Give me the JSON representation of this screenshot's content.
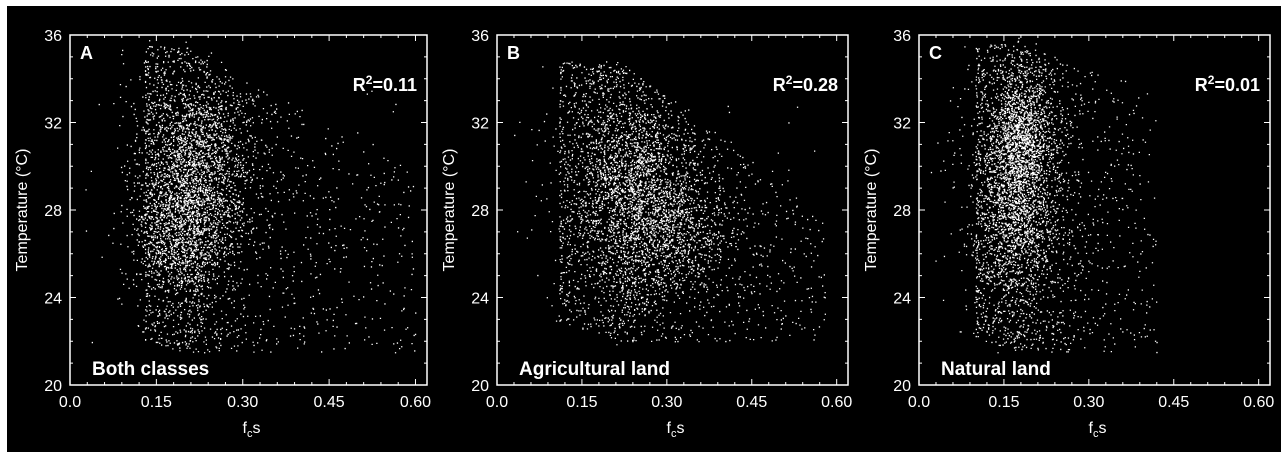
{
  "figure": {
    "background": "#000000",
    "foreground": "#ffffff"
  },
  "chart_data": [
    {
      "type": "scatter",
      "panel_letter": "A",
      "annotation": "Both classes",
      "r2_prefix": "R",
      "r2_sup": "2",
      "r2_value": "=0.11",
      "xlabel_main": "f",
      "xlabel_sub": "c",
      "xlabel_tail": "s",
      "ylabel": "Temperature (°C)",
      "xlim": [
        0.0,
        0.62
      ],
      "ylim": [
        20,
        36
      ],
      "xticks": [
        "0.0",
        "0.15",
        "0.30",
        "0.45",
        "0.60"
      ],
      "xtick_values": [
        0.0,
        0.15,
        0.3,
        0.45,
        0.6
      ],
      "yticks": [
        "20",
        "24",
        "28",
        "32",
        "36"
      ],
      "ytick_values": [
        20,
        24,
        28,
        32,
        36
      ],
      "cloud": {
        "x_mode": 0.2,
        "x_left": 0.13,
        "x_right": 0.6,
        "y_top": 35.5,
        "y_bottom": 21.5,
        "y_peak": 28.0,
        "slope": -16.0
      },
      "density_clusters": [
        {
          "x": 0.2,
          "y": 27.2,
          "spread_x": 0.045,
          "spread_y": 1.6
        },
        {
          "x": 0.22,
          "y": 30.5,
          "spread_x": 0.05,
          "spread_y": 1.8
        }
      ]
    },
    {
      "type": "scatter",
      "panel_letter": "B",
      "annotation": "Agricultural land",
      "r2_prefix": "R",
      "r2_sup": "2",
      "r2_value": "=0.28",
      "xlabel_main": "f",
      "xlabel_sub": "c",
      "xlabel_tail": "s",
      "ylabel": "Temperature (°C)",
      "xlim": [
        0.0,
        0.62
      ],
      "ylim": [
        20,
        36
      ],
      "xticks": [
        "0.0",
        "0.15",
        "0.30",
        "0.45",
        "0.60"
      ],
      "xtick_values": [
        0.0,
        0.15,
        0.3,
        0.45,
        0.6
      ],
      "yticks": [
        "20",
        "24",
        "28",
        "32",
        "36"
      ],
      "ytick_values": [
        20,
        24,
        28,
        32,
        36
      ],
      "cloud": {
        "x_mode": 0.22,
        "x_left": 0.11,
        "x_right": 0.58,
        "y_top": 34.8,
        "y_bottom": 22.0,
        "y_peak": 28.0,
        "slope": -22.0
      },
      "density_clusters": [
        {
          "x": 0.24,
          "y": 29.5,
          "spread_x": 0.06,
          "spread_y": 1.8
        },
        {
          "x": 0.3,
          "y": 27.0,
          "spread_x": 0.06,
          "spread_y": 1.6
        }
      ]
    },
    {
      "type": "scatter",
      "panel_letter": "C",
      "annotation": "Natural land",
      "r2_prefix": "R",
      "r2_sup": "2",
      "r2_value": "=0.01",
      "xlabel_main": "f",
      "xlabel_sub": "c",
      "xlabel_tail": "s",
      "ylabel": "Temperature (°C)",
      "xlim": [
        0.0,
        0.62
      ],
      "ylim": [
        20,
        36
      ],
      "xticks": [
        "0.0",
        "0.15",
        "0.30",
        "0.45",
        "0.60"
      ],
      "xtick_values": [
        0.0,
        0.15,
        0.3,
        0.45,
        0.6
      ],
      "yticks": [
        "20",
        "24",
        "28",
        "32",
        "36"
      ],
      "ytick_values": [
        20,
        24,
        28,
        32,
        36
      ],
      "cloud": {
        "x_mode": 0.18,
        "x_left": 0.1,
        "x_right": 0.42,
        "y_top": 35.6,
        "y_bottom": 21.5,
        "y_peak": 28.5,
        "slope": -10.0
      },
      "density_clusters": [
        {
          "x": 0.17,
          "y": 28.0,
          "spread_x": 0.035,
          "spread_y": 1.8
        },
        {
          "x": 0.18,
          "y": 31.5,
          "spread_x": 0.03,
          "spread_y": 1.6
        }
      ]
    }
  ]
}
